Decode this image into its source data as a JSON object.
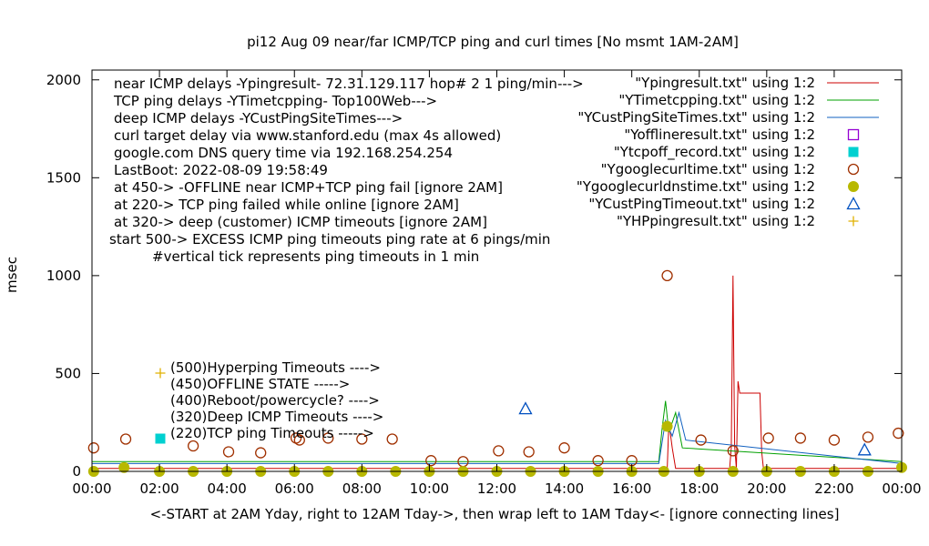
{
  "chart_data": {
    "type": "line",
    "title": "pi12 Aug 09  near/far ICMP/TCP ping and curl times [No msmt 1AM-2AM]",
    "ylabel": "msec",
    "xlabel": "<-START at 2AM Yday, right to 12AM Tday->, then wrap left to 1AM Tday<- [ignore connecting lines]",
    "ylim": [
      0,
      2050
    ],
    "xlim": [
      0,
      24
    ],
    "yticks": [
      {
        "v": 0,
        "label": "0"
      },
      {
        "v": 500,
        "label": "500"
      },
      {
        "v": 1000,
        "label": "1000"
      },
      {
        "v": 1500,
        "label": "1500"
      },
      {
        "v": 2000,
        "label": "2000"
      }
    ],
    "xticks": [
      {
        "v": 0,
        "label": "00:00"
      },
      {
        "v": 2,
        "label": "02:00"
      },
      {
        "v": 4,
        "label": "04:00"
      },
      {
        "v": 6,
        "label": "06:00"
      },
      {
        "v": 8,
        "label": "08:00"
      },
      {
        "v": 10,
        "label": "10:00"
      },
      {
        "v": 12,
        "label": "12:00"
      },
      {
        "v": 14,
        "label": "14:00"
      },
      {
        "v": 16,
        "label": "16:00"
      },
      {
        "v": 18,
        "label": "18:00"
      },
      {
        "v": 20,
        "label": "20:00"
      },
      {
        "v": 22,
        "label": "22:00"
      },
      {
        "v": 24,
        "label": "00:00"
      }
    ],
    "grid": false,
    "legend_position": "top-right",
    "info_lines": [
      "near ICMP delays -Ypingresult- 72.31.129.117 hop# 2  1 ping/min--->",
      "TCP ping delays -YTimetcpping- Top100Web--->",
      "deep ICMP delays -YCustPingSiteTimes--->",
      "curl target delay via www.stanford.edu (max 4s allowed)",
      "google.com DNS query time via 192.168.254.254",
      "LastBoot: 2022-08-09 19:58:49",
      "at 450-> -OFFLINE near ICMP+TCP ping fail [ignore 2AM]",
      "at 220-> TCP ping failed while online [ignore 2AM]",
      "at 320-> deep (customer) ICMP timeouts [ignore 2AM]",
      "start 500-> EXCESS ICMP ping timeouts ping rate at 6 pings/min",
      "#vertical tick represents ping timeouts in 1 min"
    ],
    "marker_legend": [
      {
        "label": "(500)Hyperping Timeouts ---->",
        "marker": "plus",
        "color": "#e0b000"
      },
      {
        "label": "(450)OFFLINE STATE ----->",
        "marker": "square",
        "color": "#9400d3"
      },
      {
        "label": "(400)Reboot/powercycle? ---->",
        "marker": "triangle",
        "color": "#0050c0"
      },
      {
        "label": "(320)Deep ICMP Timeouts ---->",
        "marker": "triangle",
        "color": "#0050c0"
      },
      {
        "label": "(220)TCP ping Timeouts ----->",
        "marker": "filled-square",
        "color": "#00d0d0"
      }
    ],
    "series": [
      {
        "name": "\"Ypingresult.txt\" using 1:2",
        "style": "line",
        "color": "#cc0000",
        "x": [
          0,
          16.8,
          17.05,
          17.1,
          17.2,
          17.3,
          18.9,
          18.95,
          19.0,
          19.05,
          19.1,
          19.15,
          19.2,
          19.8,
          19.85,
          19.9,
          20.0,
          24
        ],
        "y": [
          15,
          15,
          15,
          250,
          120,
          15,
          15,
          120,
          1000,
          130,
          15,
          460,
          400,
          400,
          100,
          20,
          15,
          15
        ]
      },
      {
        "name": "\"YTimetcpping.txt\" using 1:2",
        "style": "line",
        "color": "#00a000",
        "x": [
          0,
          16.8,
          16.9,
          17.0,
          17.1,
          17.3,
          17.5,
          24
        ],
        "y": [
          50,
          50,
          220,
          360,
          200,
          300,
          120,
          50
        ]
      },
      {
        "name": "\"YCustPingSiteTimes.txt\" using 1:2",
        "style": "line",
        "color": "#1060c0",
        "x": [
          0,
          16.8,
          17.0,
          17.2,
          17.4,
          17.6,
          24
        ],
        "y": [
          40,
          40,
          260,
          180,
          300,
          160,
          40
        ]
      },
      {
        "name": "\"Yofflineresult.txt\" using 1:2",
        "style": "open-square",
        "color": "#9400d3",
        "x": [],
        "y": []
      },
      {
        "name": "\"Ytcpoff_record.txt\" using 1:2",
        "style": "filled-square",
        "color": "#00d0d0",
        "x": [],
        "y": []
      },
      {
        "name": "\"Ygooglecurltime.txt\" using 1:2",
        "style": "open-circle",
        "color": "#a03000",
        "x": [
          0.05,
          1.0,
          3.0,
          4.05,
          5.0,
          6.05,
          6.15,
          7.0,
          8.0,
          8.9,
          10.05,
          11.0,
          12.05,
          12.95,
          14.0,
          15.0,
          16.0,
          17.05,
          18.05,
          19.0,
          20.05,
          21.0,
          22.0,
          23.0,
          23.9
        ],
        "y": [
          120,
          165,
          130,
          100,
          95,
          170,
          160,
          170,
          165,
          165,
          55,
          50,
          105,
          100,
          120,
          55,
          55,
          1000,
          160,
          105,
          170,
          170,
          160,
          175,
          195
        ]
      },
      {
        "name": "\"Ygooglecurldnstime.txt\" using 1:2",
        "style": "filled-circle",
        "color": "#b8b800",
        "x": [
          0.05,
          0.95,
          2.0,
          3.0,
          4.0,
          5.0,
          6.0,
          7.0,
          8.0,
          9.0,
          10.0,
          11.0,
          12.0,
          13.0,
          14.0,
          15.0,
          16.0,
          16.95,
          17.05,
          18.0,
          19.0,
          20.0,
          21.0,
          22.0,
          23.0,
          24.0
        ],
        "y": [
          0,
          20,
          0,
          0,
          0,
          0,
          0,
          0,
          0,
          0,
          0,
          0,
          0,
          0,
          0,
          0,
          0,
          0,
          230,
          0,
          0,
          0,
          0,
          0,
          0,
          20
        ]
      },
      {
        "name": "\"YCustPingTimeout.txt\" using 1:2",
        "style": "open-triangle",
        "color": "#0050c0",
        "x": [
          12.85,
          22.9
        ],
        "y": [
          320,
          110
        ]
      },
      {
        "name": "\"YHPpingresult.txt\" using 1:2",
        "style": "plus",
        "color": "#e0b000",
        "x": [],
        "y": []
      }
    ],
    "colors": {
      "background": "#ffffff",
      "axis": "#000000"
    }
  }
}
